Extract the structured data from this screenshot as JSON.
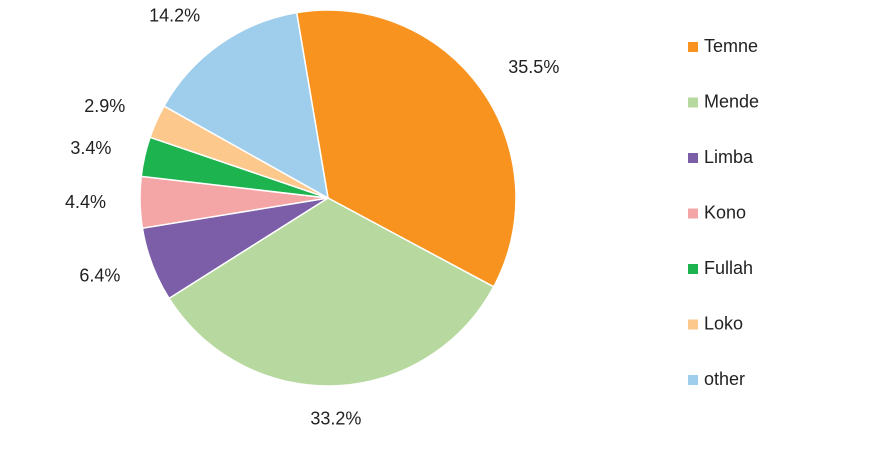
{
  "chart_data": {
    "type": "pie",
    "categories": [
      "Temne",
      "Mende",
      "Limba",
      "Kono",
      "Fullah",
      "Loko",
      "other"
    ],
    "values": [
      35.5,
      33.2,
      6.4,
      4.4,
      3.4,
      2.9,
      14.2
    ],
    "value_labels": [
      "35.5%",
      "33.2%",
      "6.4%",
      "4.4%",
      "3.4%",
      "2.9%",
      "14.2%"
    ],
    "colors": [
      "#f7931e",
      "#b7d9a0",
      "#7b5ea7",
      "#f4a6a6",
      "#1db34e",
      "#fcc88c",
      "#9fcdec"
    ],
    "legend": "right"
  }
}
